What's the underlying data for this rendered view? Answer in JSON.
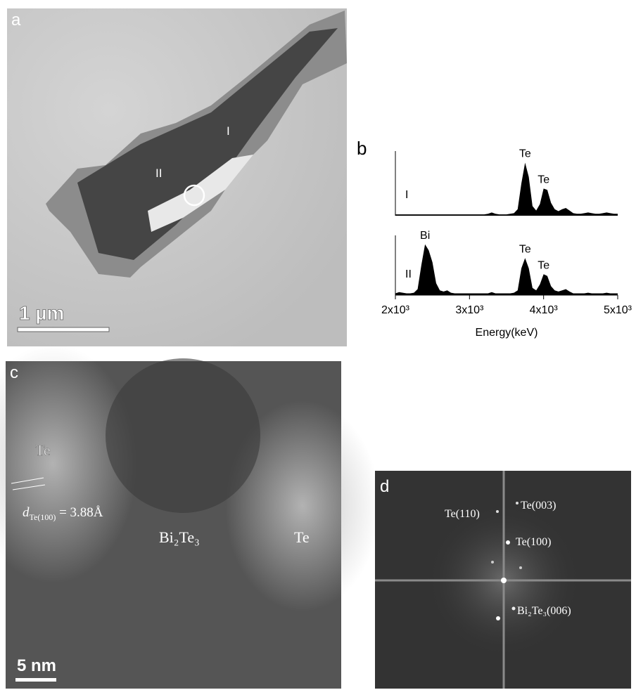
{
  "panels": {
    "a": {
      "letter": "a",
      "scale_bar": "1 µm",
      "region_labels": [
        "I",
        "II"
      ]
    },
    "c": {
      "letter": "c",
      "scale_bar": "5 nm",
      "labels": [
        "Te",
        "Bi₂Te₃",
        "Te"
      ],
      "spacing": {
        "symbol": "d",
        "subscript": "Te(100)",
        "text": " = 3.88Å"
      }
    },
    "d": {
      "letter": "d",
      "labels": [
        "Te(110)",
        "Te(003)",
        "Te(100)",
        "Bi₂Te₃(006)"
      ]
    }
  },
  "chart_data": {
    "type": "area",
    "panel_letter": "b",
    "x_label": "Energy(keV)",
    "xlim": [
      2000,
      5000
    ],
    "xticks": [
      {
        "value": 2000,
        "label": "2x10³"
      },
      {
        "value": 3000,
        "label": "3x10³"
      },
      {
        "value": 4000,
        "label": "4x10³"
      },
      {
        "value": 5000,
        "label": "5x10³"
      }
    ],
    "ylim": [
      0,
      100
    ],
    "x": [
      2000,
      2050,
      2100,
      2150,
      2200,
      2250,
      2300,
      2350,
      2400,
      2450,
      2500,
      2550,
      2600,
      2650,
      2700,
      2750,
      2800,
      2850,
      2900,
      2950,
      3000,
      3050,
      3100,
      3150,
      3200,
      3250,
      3300,
      3350,
      3400,
      3450,
      3500,
      3550,
      3600,
      3650,
      3700,
      3750,
      3800,
      3850,
      3900,
      3950,
      4000,
      4050,
      4100,
      4150,
      4200,
      4250,
      4300,
      4350,
      4400,
      4450,
      4500,
      4550,
      4600,
      4650,
      4700,
      4750,
      4800,
      4850,
      4900,
      4950,
      5000
    ],
    "series": [
      {
        "name": "I",
        "color": "#000000",
        "values": [
          2,
          2,
          2,
          2,
          2,
          2,
          2,
          2,
          2,
          2,
          2,
          2,
          2,
          2,
          2,
          2,
          2,
          2,
          2,
          2,
          2,
          2,
          2,
          2,
          2,
          3,
          5,
          3,
          2,
          2,
          2,
          3,
          4,
          10,
          50,
          82,
          60,
          15,
          8,
          18,
          42,
          40,
          20,
          10,
          7,
          10,
          12,
          8,
          4,
          3,
          3,
          4,
          5,
          4,
          3,
          3,
          4,
          5,
          4,
          3,
          3
        ],
        "annotations": [
          {
            "text": "Te",
            "x": 3750
          },
          {
            "text": "Te",
            "x": 4000
          }
        ]
      },
      {
        "name": "II",
        "color": "#000000",
        "values": [
          3,
          5,
          4,
          3,
          3,
          4,
          10,
          50,
          85,
          75,
          55,
          20,
          8,
          6,
          8,
          4,
          3,
          3,
          3,
          3,
          3,
          3,
          3,
          3,
          3,
          3,
          5,
          3,
          3,
          3,
          3,
          3,
          4,
          8,
          45,
          62,
          45,
          12,
          8,
          18,
          35,
          32,
          15,
          8,
          6,
          8,
          10,
          6,
          3,
          3,
          3,
          3,
          4,
          3,
          3,
          3,
          3,
          4,
          3,
          3,
          3
        ],
        "annotations": [
          {
            "text": "Bi",
            "x": 2400
          },
          {
            "text": "Te",
            "x": 3750
          },
          {
            "text": "Te",
            "x": 4000
          }
        ]
      }
    ]
  }
}
